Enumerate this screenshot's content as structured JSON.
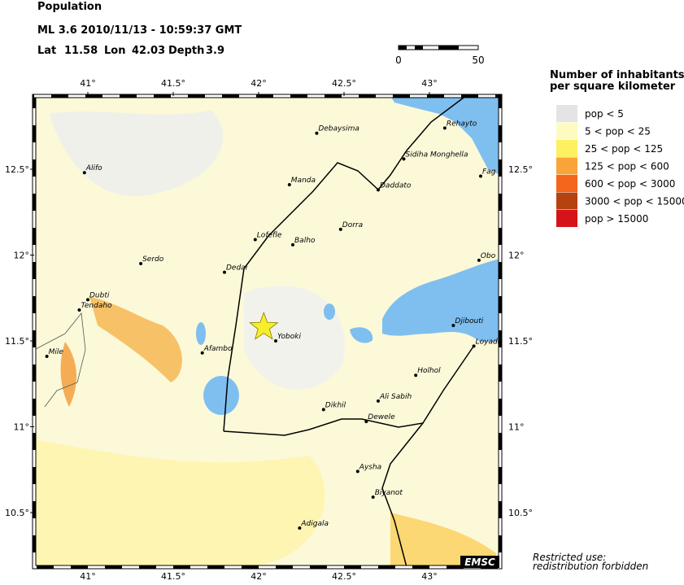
{
  "header": {
    "title": "Population",
    "event": "ML 3.6  2010/11/13 - 10:59:37 GMT",
    "lat_label": "Lat",
    "lat": 11.58,
    "lon_label": "Lon",
    "lon": 42.03,
    "depth_label": "Depth",
    "depth": 3.9
  },
  "scale_bar": {
    "start": "0",
    "end": "50"
  },
  "legend": {
    "title_lines": [
      "Number of inhabitants",
      "per square kilometer"
    ],
    "items": [
      {
        "label": "pop < 5",
        "color": "#e4e4e4"
      },
      {
        "label": "5 < pop < 25",
        "color": "#fdfbc0"
      },
      {
        "label": "25 < pop < 125",
        "color": "#fdf061"
      },
      {
        "label": "125 < pop < 600",
        "color": "#f9a43a"
      },
      {
        "label": "600 < pop < 3000",
        "color": "#f4661c"
      },
      {
        "label": "3000 < pop < 15000",
        "color": "#b5420f"
      },
      {
        "label": "pop > 15000",
        "color": "#d5141a"
      }
    ]
  },
  "map": {
    "lon_ticks": [
      {
        "value": 41,
        "label": "41°"
      },
      {
        "value": 41.5,
        "label": "41.5°"
      },
      {
        "value": 42,
        "label": "42°"
      },
      {
        "value": 42.5,
        "label": "42.5°"
      },
      {
        "value": 43,
        "label": "43°"
      }
    ],
    "lat_ticks": [
      {
        "value": 12.5,
        "label": "12.5°"
      },
      {
        "value": 12,
        "label": "12°"
      },
      {
        "value": 11.5,
        "label": "11.5°"
      },
      {
        "value": 11,
        "label": "11°"
      },
      {
        "value": 10.5,
        "label": "10.5°"
      }
    ],
    "cities": [
      {
        "name": "Debaysima",
        "lon": 42.34,
        "lat": 12.71
      },
      {
        "name": "Rehayto",
        "lon": 43.09,
        "lat": 12.74
      },
      {
        "name": "Sidiha Monghella",
        "lon": 42.85,
        "lat": 12.56
      },
      {
        "name": "Fag",
        "lon": 43.3,
        "lat": 12.46
      },
      {
        "name": "Alifo",
        "lon": 40.98,
        "lat": 12.48
      },
      {
        "name": "Manda",
        "lon": 42.18,
        "lat": 12.41
      },
      {
        "name": "Daddato",
        "lon": 42.7,
        "lat": 12.38
      },
      {
        "name": "Dorra",
        "lon": 42.48,
        "lat": 12.15
      },
      {
        "name": "Lofefle",
        "lon": 41.98,
        "lat": 12.09
      },
      {
        "name": "Balho",
        "lon": 42.2,
        "lat": 12.06
      },
      {
        "name": "Obo",
        "lon": 43.29,
        "lat": 11.97
      },
      {
        "name": "Serdo",
        "lon": 41.31,
        "lat": 11.95
      },
      {
        "name": "Dedai",
        "lon": 41.8,
        "lat": 11.9
      },
      {
        "name": "Dubti",
        "lon": 41.0,
        "lat": 11.74
      },
      {
        "name": "Tendaho",
        "lon": 40.95,
        "lat": 11.68
      },
      {
        "name": "Djibouti",
        "lon": 43.14,
        "lat": 11.59
      },
      {
        "name": "Yoboki",
        "lon": 42.1,
        "lat": 11.5
      },
      {
        "name": "Mile",
        "lon": 40.76,
        "lat": 11.41
      },
      {
        "name": "Loyada",
        "lon": 43.26,
        "lat": 11.47
      },
      {
        "name": "Afambo",
        "lon": 41.67,
        "lat": 11.43
      },
      {
        "name": "Holhol",
        "lon": 42.92,
        "lat": 11.3
      },
      {
        "name": "Ali Sabih",
        "lon": 42.7,
        "lat": 11.15
      },
      {
        "name": "Dikhil",
        "lon": 42.38,
        "lat": 11.1
      },
      {
        "name": "Dewele",
        "lon": 42.63,
        "lat": 11.03
      },
      {
        "name": "Aysha",
        "lon": 42.58,
        "lat": 10.74
      },
      {
        "name": "Biyanot",
        "lon": 42.67,
        "lat": 10.59
      },
      {
        "name": "Adigala",
        "lon": 42.24,
        "lat": 10.41
      }
    ]
  },
  "footer": {
    "notice_lines": [
      "Restricted use:",
      "redistribution forbidden"
    ],
    "logo": "EMSC"
  }
}
